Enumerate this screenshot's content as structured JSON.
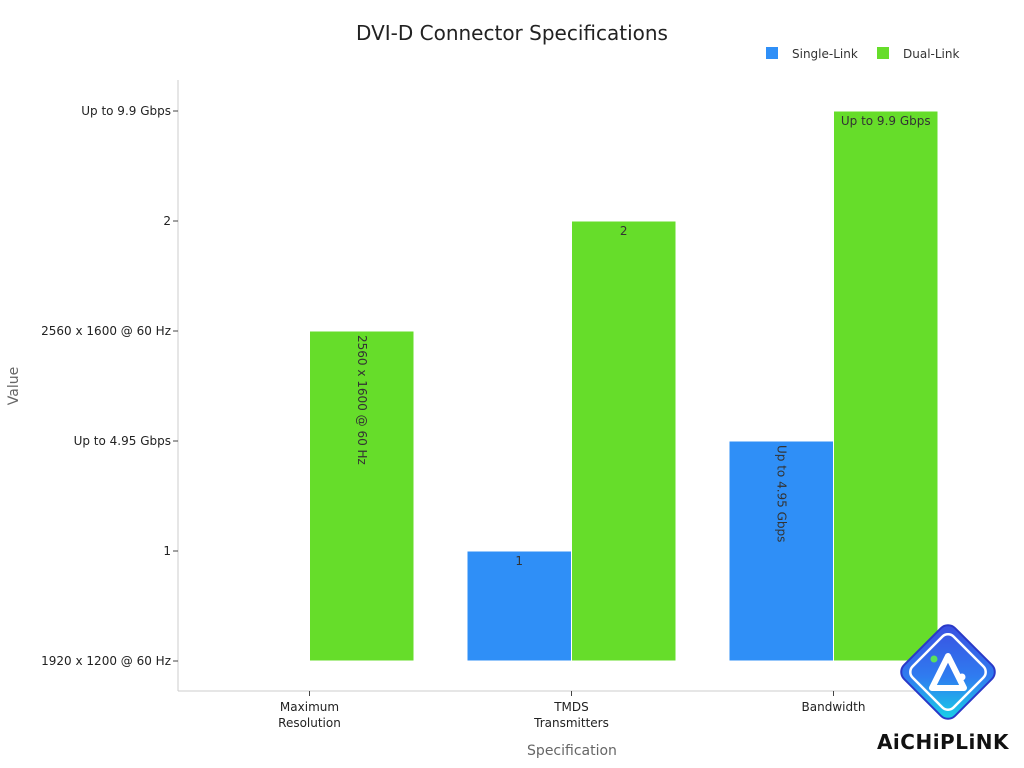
{
  "chart_data": {
    "type": "bar",
    "title": "DVI-D Connector Specifications",
    "xlabel": "Specification",
    "ylabel": "Value",
    "categories": [
      [
        "Maximum",
        "Resolution"
      ],
      [
        "TMDS",
        "Transmitters"
      ],
      [
        "Bandwidth"
      ]
    ],
    "y_ticks": [
      "1920 x 1200 @ 60 Hz",
      "1",
      "Up to 4.95 Gbps",
      "2560 x 1600 @ 60 Hz",
      "2",
      "Up to 9.9 Gbps"
    ],
    "series": [
      {
        "name": "Single-Link",
        "color": "#2f8ff7",
        "values": [
          "1920 x 1200 @ 60 Hz",
          "1",
          "Up to 4.95 Gbps"
        ],
        "labels": [
          "",
          "1",
          "Up to 4.95 Gbps"
        ],
        "label_orientation": [
          "none",
          "horizontal",
          "vertical"
        ]
      },
      {
        "name": "Dual-Link",
        "color": "#66dd2a",
        "values": [
          "2560 x 1600 @ 60 Hz",
          "2",
          "Up to 9.9 Gbps"
        ],
        "labels": [
          "2560 x 1600 @ 60 Hz",
          "2",
          "Up to 9.9 Gbps"
        ],
        "label_orientation": [
          "vertical",
          "horizontal",
          "horizontal"
        ]
      }
    ],
    "legend_position": "top-right",
    "grid": false
  },
  "branding": {
    "text": "AiCHiPLiNK"
  }
}
